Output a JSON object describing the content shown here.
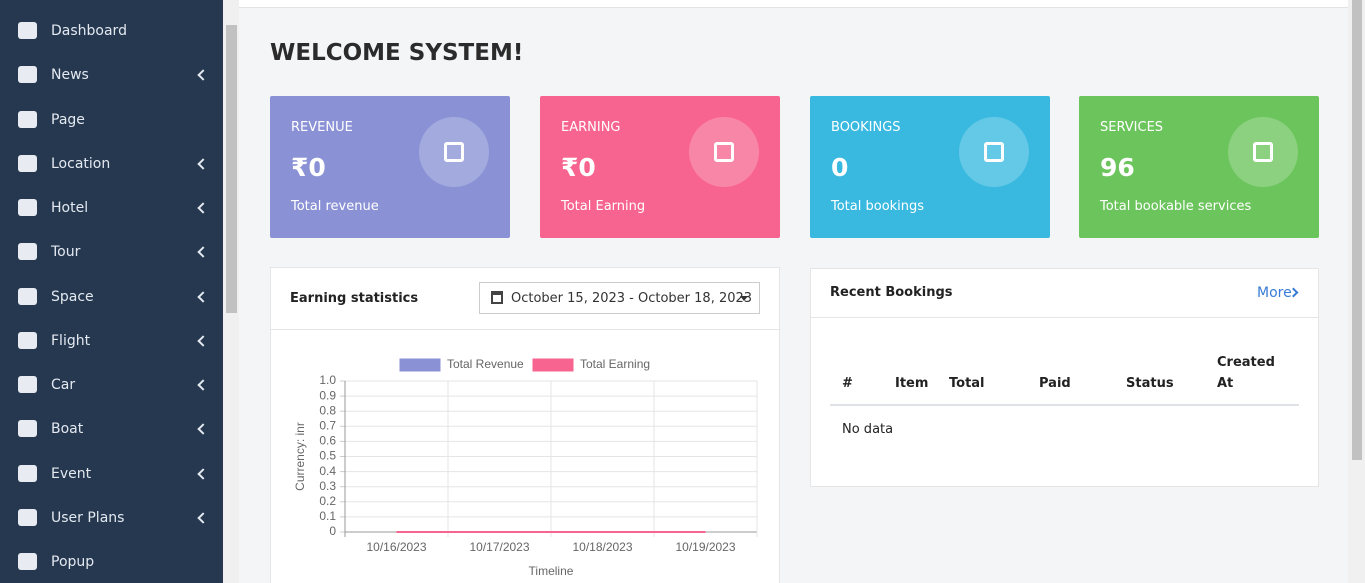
{
  "sidebar": {
    "items": [
      {
        "label": "Dashboard",
        "submenu": false
      },
      {
        "label": "News",
        "submenu": true
      },
      {
        "label": "Page",
        "submenu": false
      },
      {
        "label": "Location",
        "submenu": true
      },
      {
        "label": "Hotel",
        "submenu": true
      },
      {
        "label": "Tour",
        "submenu": true
      },
      {
        "label": "Space",
        "submenu": true
      },
      {
        "label": "Flight",
        "submenu": true
      },
      {
        "label": "Car",
        "submenu": true
      },
      {
        "label": "Boat",
        "submenu": true
      },
      {
        "label": "Event",
        "submenu": true
      },
      {
        "label": "User Plans",
        "submenu": true
      },
      {
        "label": "Popup",
        "submenu": false
      }
    ]
  },
  "header": {
    "title": "WELCOME SYSTEM!"
  },
  "cards": [
    {
      "label": "REVENUE",
      "value": "₹0",
      "caption": "Total revenue",
      "color": "#8a92d5"
    },
    {
      "label": "EARNING",
      "value": "₹0",
      "caption": "Total Earning",
      "color": "#f7648f"
    },
    {
      "label": "BOOKINGS",
      "value": "0",
      "caption": "Total bookings",
      "color": "#39b9e0"
    },
    {
      "label": "SERVICES",
      "value": "96",
      "caption": "Total bookable services",
      "color": "#6cc55c"
    }
  ],
  "earning_panel": {
    "title": "Earning statistics",
    "date_range": "October 15, 2023 - October 18, 2023"
  },
  "chart_data": {
    "type": "line",
    "categories": [
      "10/16/2023",
      "10/17/2023",
      "10/18/2023",
      "10/19/2023"
    ],
    "series": [
      {
        "name": "Total Revenue",
        "color": "#8a92d5",
        "values": [
          0,
          0,
          0,
          0
        ]
      },
      {
        "name": "Total Earning",
        "color": "#f7648f",
        "values": [
          0,
          0,
          0,
          0
        ]
      }
    ],
    "ylim": [
      0,
      1
    ],
    "yticks": [
      0,
      0.1,
      0.2,
      0.3,
      0.4,
      0.5,
      0.6,
      0.7,
      0.8,
      0.9,
      {
        "value": 1,
        "label": "1.0"
      }
    ],
    "y_label": "Currency: inr",
    "x_label": "Timeline",
    "grid": true
  },
  "bookings_panel": {
    "title": "Recent Bookings",
    "more": "More",
    "columns": [
      "#",
      "Item",
      "Total",
      "Paid",
      "Status",
      "Created At"
    ],
    "empty": "No data"
  }
}
